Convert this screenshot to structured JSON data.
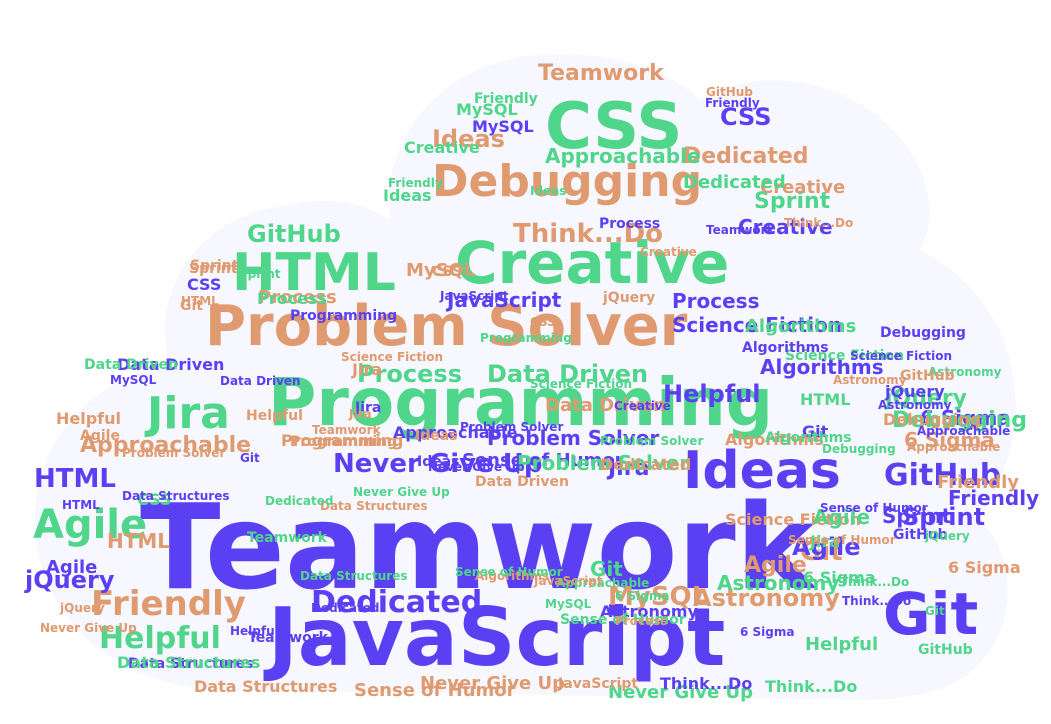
{
  "colors": {
    "purple": "#5b3ff2",
    "green": "#4fd68a",
    "orange": "#e09a6f",
    "cloud_fill": "#f7f7ff"
  },
  "words": [
    {
      "text": "Teamwork",
      "color": "purple"
    },
    {
      "text": "JavaScript",
      "color": "purple"
    },
    {
      "text": "Programming",
      "color": "green"
    },
    {
      "text": "Problem Solver",
      "color": "orange"
    },
    {
      "text": "Creative",
      "color": "green"
    },
    {
      "text": "CSS",
      "color": "green"
    },
    {
      "text": "Debugging",
      "color": "orange"
    },
    {
      "text": "HTML",
      "color": "green"
    },
    {
      "text": "Ideas",
      "color": "purple"
    },
    {
      "text": "Git",
      "color": "purple"
    },
    {
      "text": "Jira",
      "color": "green"
    },
    {
      "text": "Never Give Up",
      "color": "purple"
    },
    {
      "text": "Agile",
      "color": "green"
    },
    {
      "text": "Friendly",
      "color": "orange"
    },
    {
      "text": "Dedicated",
      "color": "purple"
    },
    {
      "text": "Helpful",
      "color": "green"
    },
    {
      "text": "Process",
      "color": "green"
    },
    {
      "text": "Data Driven",
      "color": "green"
    },
    {
      "text": "Approachable",
      "color": "orange"
    },
    {
      "text": "GitHub",
      "color": "purple"
    },
    {
      "text": "Sprint",
      "color": "purple"
    },
    {
      "text": "MySQL",
      "color": "orange"
    },
    {
      "text": "Astronomy",
      "color": "orange"
    },
    {
      "text": "jQuery",
      "color": "purple"
    },
    {
      "text": "Science Fiction",
      "color": "purple"
    },
    {
      "text": "Algorithms",
      "color": "purple"
    },
    {
      "text": "6 Sigma",
      "color": "orange"
    },
    {
      "text": "Think...Do",
      "color": "orange"
    },
    {
      "text": "Data Structures",
      "color": "orange"
    },
    {
      "text": "Sense of Humor",
      "color": "orange"
    },
    {
      "text": "Never Give Up",
      "color": "green"
    },
    {
      "text": "Think...Do",
      "color": "green"
    },
    {
      "text": "Teamwork",
      "color": "orange"
    },
    {
      "text": "Ideas",
      "color": "orange"
    },
    {
      "text": "Problem Solver",
      "color": "purple"
    },
    {
      "text": "Process",
      "color": "purple"
    },
    {
      "text": "Data Driven",
      "color": "orange"
    },
    {
      "text": "Helpful",
      "color": "purple"
    },
    {
      "text": "Algorithms",
      "color": "green"
    },
    {
      "text": "Science Fiction",
      "color": "green"
    },
    {
      "text": "GitHub",
      "color": "green"
    },
    {
      "text": "Sprint",
      "color": "green"
    },
    {
      "text": "Creative",
      "color": "purple"
    },
    {
      "text": "Dedicated",
      "color": "orange"
    },
    {
      "text": "Approachable",
      "color": "green"
    },
    {
      "text": "Agile",
      "color": "orange"
    },
    {
      "text": "Jira",
      "color": "purple"
    },
    {
      "text": "MySQL",
      "color": "purple"
    },
    {
      "text": "Teamwork",
      "color": "purple"
    },
    {
      "text": "JavaScript",
      "color": "purple"
    },
    {
      "text": "CSS",
      "color": "purple"
    },
    {
      "text": "6 Sigma",
      "color": "purple"
    },
    {
      "text": "jQuery",
      "color": "green"
    },
    {
      "text": "Friendly",
      "color": "purple"
    },
    {
      "text": "Git",
      "color": "orange"
    },
    {
      "text": "HTML",
      "color": "orange"
    },
    {
      "text": "Programming",
      "color": "orange"
    },
    {
      "text": "Debugging",
      "color": "green"
    },
    {
      "text": "Astronomy",
      "color": "green"
    },
    {
      "text": "Sense of Humor",
      "color": "purple"
    },
    {
      "text": "Data Structures",
      "color": "purple"
    },
    {
      "text": "Helpful",
      "color": "orange"
    },
    {
      "text": "Sprint",
      "color": "orange"
    },
    {
      "text": "GitHub",
      "color": "orange"
    },
    {
      "text": "Git",
      "color": "green"
    },
    {
      "text": "Jira",
      "color": "orange"
    },
    {
      "text": "Agile",
      "color": "purple"
    },
    {
      "text": "HTML",
      "color": "purple"
    },
    {
      "text": "Process",
      "color": "orange"
    },
    {
      "text": "Ideas",
      "color": "green"
    },
    {
      "text": "Creative",
      "color": "orange"
    },
    {
      "text": "CSS",
      "color": "orange"
    },
    {
      "text": "jQuery",
      "color": "orange"
    },
    {
      "text": "MySQL",
      "color": "green"
    },
    {
      "text": "Dedicated",
      "color": "green"
    },
    {
      "text": "Friendly",
      "color": "green"
    },
    {
      "text": "Approachable",
      "color": "purple"
    },
    {
      "text": "Never Give Up",
      "color": "orange"
    },
    {
      "text": "Think...Do",
      "color": "purple"
    },
    {
      "text": "Algorithms",
      "color": "orange"
    },
    {
      "text": "Data Driven",
      "color": "purple"
    },
    {
      "text": "Problem Solver",
      "color": "green"
    },
    {
      "text": "6 Sigma",
      "color": "green"
    },
    {
      "text": "Science Fiction",
      "color": "orange"
    },
    {
      "text": "Teamwork",
      "color": "green"
    },
    {
      "text": "JavaScript",
      "color": "orange"
    },
    {
      "text": "Astronomy",
      "color": "purple"
    },
    {
      "text": "Sense of Humor",
      "color": "green"
    },
    {
      "text": "Data Structures",
      "color": "green"
    },
    {
      "text": "Programming",
      "color": "purple"
    },
    {
      "text": "Debugging",
      "color": "purple"
    },
    {
      "text": "Git",
      "color": "purple"
    },
    {
      "text": "GitHub",
      "color": "purple"
    },
    {
      "text": "HTML",
      "color": "green"
    },
    {
      "text": "Agile",
      "color": "green"
    },
    {
      "text": "Jira",
      "color": "green"
    },
    {
      "text": "Sprint",
      "color": "purple"
    },
    {
      "text": "CSS",
      "color": "purple"
    },
    {
      "text": "jQuery",
      "color": "purple"
    },
    {
      "text": "Helpful",
      "color": "green"
    },
    {
      "text": "Friendly",
      "color": "orange"
    },
    {
      "text": "Ideas",
      "color": "purple"
    },
    {
      "text": "Creative",
      "color": "green"
    },
    {
      "text": "MySQL",
      "color": "orange"
    },
    {
      "text": "Process",
      "color": "green"
    },
    {
      "text": "Never Give Up",
      "color": "purple"
    },
    {
      "text": "Think...Do",
      "color": "orange"
    },
    {
      "text": "6 Sigma",
      "color": "orange"
    },
    {
      "text": "Git",
      "color": "orange"
    },
    {
      "text": "Algorithms",
      "color": "purple"
    },
    {
      "text": "Dedicated",
      "color": "purple"
    },
    {
      "text": "Approachable",
      "color": "orange"
    },
    {
      "text": "Problem Solver",
      "color": "orange"
    },
    {
      "text": "Data Driven",
      "color": "green"
    },
    {
      "text": "Teamwork",
      "color": "purple"
    },
    {
      "text": "JavaScript",
      "color": "purple"
    },
    {
      "text": "Science Fiction",
      "color": "purple"
    },
    {
      "text": "Sense of Humor",
      "color": "orange"
    },
    {
      "text": "Data Structures",
      "color": "orange"
    },
    {
      "text": "Astronomy",
      "color": "orange"
    },
    {
      "text": "Programming",
      "color": "green"
    },
    {
      "text": "Debugging",
      "color": "orange"
    },
    {
      "text": "GitHub",
      "color": "green"
    },
    {
      "text": "Sprint",
      "color": "green"
    },
    {
      "text": "Creative",
      "color": "purple"
    },
    {
      "text": "Agile",
      "color": "orange"
    },
    {
      "text": "Jira",
      "color": "purple"
    },
    {
      "text": "HTML",
      "color": "orange"
    },
    {
      "text": "CSS",
      "color": "green"
    },
    {
      "text": "jQuery",
      "color": "green"
    },
    {
      "text": "Helpful",
      "color": "purple"
    },
    {
      "text": "Friendly",
      "color": "purple"
    },
    {
      "text": "Ideas",
      "color": "orange"
    },
    {
      "text": "MySQL",
      "color": "purple"
    },
    {
      "text": "Git",
      "color": "green"
    },
    {
      "text": "Process",
      "color": "purple"
    },
    {
      "text": "Never Give Up",
      "color": "green"
    },
    {
      "text": "Think...Do",
      "color": "green"
    },
    {
      "text": "6 Sigma",
      "color": "purple"
    },
    {
      "text": "Dedicated",
      "color": "orange"
    },
    {
      "text": "Algorithms",
      "color": "green"
    },
    {
      "text": "Approachable",
      "color": "green"
    },
    {
      "text": "Problem Solver",
      "color": "purple"
    },
    {
      "text": "Data Driven",
      "color": "orange"
    },
    {
      "text": "Science Fiction",
      "color": "green"
    },
    {
      "text": "Sense of Humor",
      "color": "purple"
    },
    {
      "text": "Data Structures",
      "color": "purple"
    },
    {
      "text": "Astronomy",
      "color": "green"
    },
    {
      "text": "Teamwork",
      "color": "orange"
    },
    {
      "text": "JavaScript",
      "color": "orange"
    },
    {
      "text": "Programming",
      "color": "orange"
    },
    {
      "text": "Debugging",
      "color": "green"
    },
    {
      "text": "GitHub",
      "color": "orange"
    },
    {
      "text": "Sprint",
      "color": "orange"
    },
    {
      "text": "Creative",
      "color": "orange"
    },
    {
      "text": "Agile",
      "color": "purple"
    },
    {
      "text": "Jira",
      "color": "orange"
    },
    {
      "text": "HTML",
      "color": "purple"
    },
    {
      "text": "CSS",
      "color": "orange"
    },
    {
      "text": "jQuery",
      "color": "orange"
    },
    {
      "text": "Helpful",
      "color": "orange"
    },
    {
      "text": "Friendly",
      "color": "green"
    },
    {
      "text": "Ideas",
      "color": "green"
    },
    {
      "text": "MySQL",
      "color": "green"
    },
    {
      "text": "Git",
      "color": "purple"
    },
    {
      "text": "Process",
      "color": "orange"
    },
    {
      "text": "Never Give Up",
      "color": "orange"
    },
    {
      "text": "Think...Do",
      "color": "purple"
    },
    {
      "text": "6 Sigma",
      "color": "green"
    },
    {
      "text": "Dedicated",
      "color": "green"
    },
    {
      "text": "Algorithms",
      "color": "orange"
    },
    {
      "text": "Approachable",
      "color": "purple"
    },
    {
      "text": "Problem Solver",
      "color": "green"
    },
    {
      "text": "Data Driven",
      "color": "purple"
    },
    {
      "text": "Science Fiction",
      "color": "orange"
    },
    {
      "text": "Sense of Humor",
      "color": "green"
    },
    {
      "text": "Data Structures",
      "color": "green"
    },
    {
      "text": "Astronomy",
      "color": "purple"
    }
  ]
}
